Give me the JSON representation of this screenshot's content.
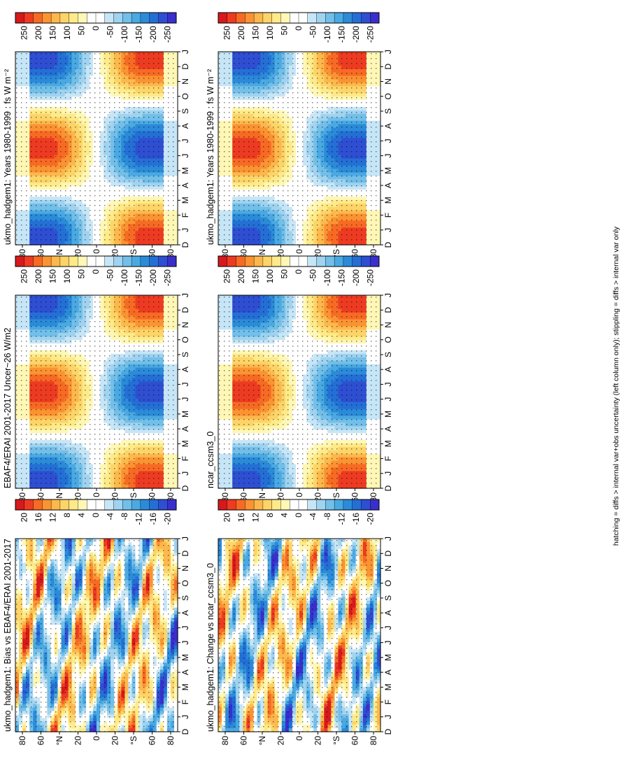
{
  "figure": {
    "footnote": "hatching = diffs > internal var+obs uncertainty (left column only); stippling = diffs > internal var only"
  },
  "chart_data": [
    {
      "type": "heatmap",
      "id": "p_model_left",
      "title": "ukmo_hadgem1: Years 1980-1999 : fs W m⁻²",
      "x_ticks": [
        "D",
        "J",
        "F",
        "M",
        "A",
        "M",
        "J",
        "J",
        "A",
        "S",
        "O",
        "N",
        "D",
        "J"
      ],
      "y_ticks": [
        "80",
        "60",
        "°N",
        "20",
        "0",
        "20",
        "°S",
        "60",
        "80"
      ],
      "legend_labels": [
        "250",
        "200",
        "150",
        "100",
        "50",
        "0",
        "-50",
        "-100",
        "-150",
        "-200",
        "-250"
      ],
      "value_range": [
        -275,
        275
      ],
      "units": "W m-2",
      "field": "seasonal"
    },
    {
      "type": "heatmap",
      "id": "p_model_right",
      "title": "ukmo_hadgem1: Years 1980-1999 : fs W m⁻²",
      "x_ticks": [
        "D",
        "J",
        "F",
        "M",
        "A",
        "M",
        "J",
        "J",
        "A",
        "S",
        "O",
        "N",
        "D",
        "J"
      ],
      "y_ticks": [
        "80",
        "60",
        "°N",
        "20",
        "0",
        "20",
        "°S",
        "60",
        "80"
      ],
      "legend_labels": [
        "250",
        "200",
        "150",
        "100",
        "50",
        "0",
        "-50",
        "-100",
        "-150",
        "-200",
        "-250"
      ],
      "value_range": [
        -275,
        275
      ],
      "units": "W m-2",
      "field": "seasonal"
    },
    {
      "type": "heatmap",
      "id": "p_obs",
      "title": "EBAF4/ERAI 2001-2017 Uncer~26 W/m2",
      "x_ticks": [
        "D",
        "J",
        "F",
        "M",
        "A",
        "M",
        "J",
        "J",
        "A",
        "S",
        "O",
        "N",
        "D",
        "J"
      ],
      "y_ticks": [
        "80",
        "60",
        "°N",
        "20",
        "0",
        "20",
        "°S",
        "60",
        "80"
      ],
      "legend_labels": [
        "250",
        "200",
        "150",
        "100",
        "50",
        "0",
        "-50",
        "-100",
        "-150",
        "-200",
        "-250"
      ],
      "value_range": [
        -275,
        275
      ],
      "units": "W m-2",
      "field": "seasonal"
    },
    {
      "type": "heatmap",
      "id": "p_ref_model",
      "title": "ncar_ccsm3_0",
      "x_ticks": [
        "D",
        "J",
        "F",
        "M",
        "A",
        "M",
        "J",
        "J",
        "A",
        "S",
        "O",
        "N",
        "D",
        "J"
      ],
      "y_ticks": [
        "80",
        "60",
        "°N",
        "20",
        "0",
        "20",
        "°S",
        "60",
        "80"
      ],
      "legend_labels": [
        "250",
        "200",
        "150",
        "100",
        "50",
        "0",
        "-50",
        "-100",
        "-150",
        "-200",
        "-250"
      ],
      "value_range": [
        -275,
        275
      ],
      "units": "W m-2",
      "field": "seasonal"
    },
    {
      "type": "heatmap",
      "id": "p_bias",
      "title": "ukmo_hadgem1: Bias vs EBAF4/ERAI 2001-2017",
      "x_ticks": [
        "D",
        "J",
        "F",
        "M",
        "A",
        "M",
        "J",
        "J",
        "A",
        "S",
        "O",
        "N",
        "D",
        "J"
      ],
      "y_ticks": [
        "80",
        "60",
        "°N",
        "20",
        "0",
        "20",
        "°S",
        "60",
        "80"
      ],
      "legend_labels": [
        "20",
        "16",
        "12",
        "8",
        "4",
        "0",
        "-4",
        "-8",
        "-12",
        "-16",
        "-20"
      ],
      "value_range": [
        -22,
        22
      ],
      "units": "W m-2",
      "field": "diff"
    },
    {
      "type": "heatmap",
      "id": "p_change",
      "title": "ukmo_hadgem1: Change vs ncar_ccsm3_0",
      "x_ticks": [
        "D",
        "J",
        "F",
        "M",
        "A",
        "M",
        "J",
        "J",
        "A",
        "S",
        "O",
        "N",
        "D",
        "J"
      ],
      "y_ticks": [
        "80",
        "60",
        "°N",
        "20",
        "0",
        "20",
        "°S",
        "60",
        "80"
      ],
      "legend_labels": [
        "20",
        "16",
        "12",
        "8",
        "4",
        "0",
        "-4",
        "-8",
        "-12",
        "-16",
        "-20"
      ],
      "value_range": [
        -22,
        22
      ],
      "units": "W m-2",
      "field": "diff"
    }
  ]
}
